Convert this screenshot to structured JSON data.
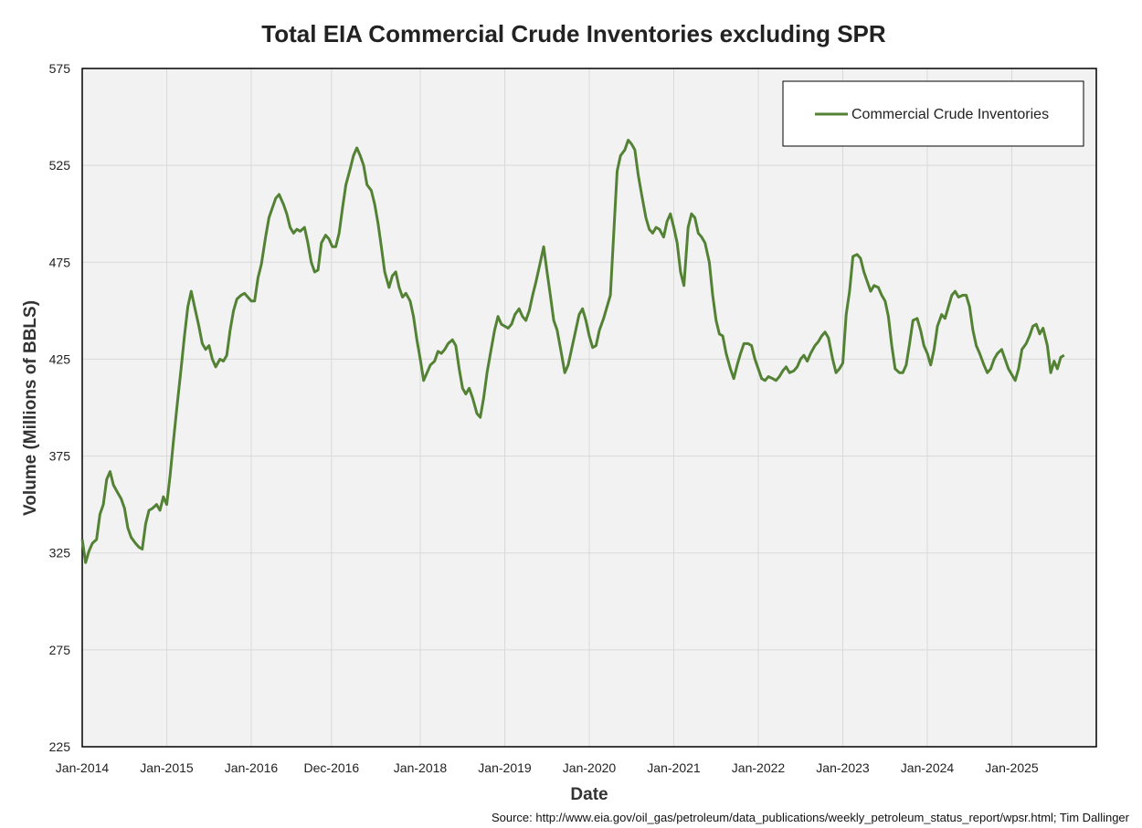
{
  "chart_data": {
    "type": "line",
    "title": "Total EIA Commercial Crude Inventories excluding SPR",
    "xlabel": "Date",
    "ylabel": "Volume (Millions of BBLS)",
    "ylim": [
      225,
      575
    ],
    "yticks": [
      225,
      275,
      325,
      375,
      425,
      475,
      525,
      575
    ],
    "xlim": [
      2014.0,
      2026.0
    ],
    "xticks": [
      {
        "label": "Jan-2014",
        "t": 2014.0
      },
      {
        "label": "Jan-2015",
        "t": 2015.0
      },
      {
        "label": "Jan-2016",
        "t": 2016.0
      },
      {
        "label": "Dec-2016",
        "t": 2016.95
      },
      {
        "label": "Jan-2018",
        "t": 2018.0
      },
      {
        "label": "Jan-2019",
        "t": 2019.0
      },
      {
        "label": "Jan-2020",
        "t": 2020.0
      },
      {
        "label": "Jan-2021",
        "t": 2021.0
      },
      {
        "label": "Jan-2022",
        "t": 2022.0
      },
      {
        "label": "Jan-2023",
        "t": 2023.0
      },
      {
        "label": "Jan-2024",
        "t": 2024.0
      },
      {
        "label": "Jan-2025",
        "t": 2025.0
      }
    ],
    "grid": true,
    "legend_position": "top-right",
    "series": [
      {
        "name": "Commercial Crude Inventories",
        "color": "#548235",
        "points": [
          [
            2014.0,
            332
          ],
          [
            2014.04,
            320
          ],
          [
            2014.08,
            326
          ],
          [
            2014.12,
            330
          ],
          [
            2014.17,
            332
          ],
          [
            2014.21,
            345
          ],
          [
            2014.25,
            350
          ],
          [
            2014.29,
            363
          ],
          [
            2014.33,
            367
          ],
          [
            2014.37,
            360
          ],
          [
            2014.42,
            356
          ],
          [
            2014.46,
            353
          ],
          [
            2014.5,
            348
          ],
          [
            2014.54,
            338
          ],
          [
            2014.58,
            333
          ],
          [
            2014.63,
            330
          ],
          [
            2014.67,
            328
          ],
          [
            2014.71,
            327
          ],
          [
            2014.75,
            340
          ],
          [
            2014.79,
            347
          ],
          [
            2014.83,
            348
          ],
          [
            2014.88,
            350
          ],
          [
            2014.92,
            347
          ],
          [
            2014.96,
            354
          ],
          [
            2015.0,
            350
          ],
          [
            2015.04,
            365
          ],
          [
            2015.08,
            383
          ],
          [
            2015.12,
            400
          ],
          [
            2015.17,
            420
          ],
          [
            2015.21,
            437
          ],
          [
            2015.25,
            452
          ],
          [
            2015.29,
            460
          ],
          [
            2015.33,
            452
          ],
          [
            2015.38,
            442
          ],
          [
            2015.42,
            433
          ],
          [
            2015.46,
            430
          ],
          [
            2015.5,
            432
          ],
          [
            2015.54,
            425
          ],
          [
            2015.58,
            421
          ],
          [
            2015.63,
            425
          ],
          [
            2015.67,
            424
          ],
          [
            2015.71,
            427
          ],
          [
            2015.75,
            440
          ],
          [
            2015.79,
            450
          ],
          [
            2015.83,
            456
          ],
          [
            2015.88,
            458
          ],
          [
            2015.92,
            459
          ],
          [
            2015.96,
            457
          ],
          [
            2016.0,
            455
          ],
          [
            2016.04,
            455
          ],
          [
            2016.08,
            467
          ],
          [
            2016.12,
            474
          ],
          [
            2016.17,
            488
          ],
          [
            2016.21,
            498
          ],
          [
            2016.25,
            503
          ],
          [
            2016.29,
            508
          ],
          [
            2016.33,
            510
          ],
          [
            2016.38,
            505
          ],
          [
            2016.42,
            500
          ],
          [
            2016.46,
            493
          ],
          [
            2016.5,
            490
          ],
          [
            2016.54,
            492
          ],
          [
            2016.58,
            491
          ],
          [
            2016.63,
            493
          ],
          [
            2016.67,
            485
          ],
          [
            2016.71,
            475
          ],
          [
            2016.75,
            470
          ],
          [
            2016.79,
            471
          ],
          [
            2016.83,
            485
          ],
          [
            2016.88,
            489
          ],
          [
            2016.92,
            487
          ],
          [
            2016.96,
            483
          ],
          [
            2017.0,
            483
          ],
          [
            2017.04,
            490
          ],
          [
            2017.08,
            503
          ],
          [
            2017.12,
            515
          ],
          [
            2017.17,
            523
          ],
          [
            2017.21,
            530
          ],
          [
            2017.25,
            534
          ],
          [
            2017.29,
            530
          ],
          [
            2017.33,
            525
          ],
          [
            2017.37,
            515
          ],
          [
            2017.42,
            512
          ],
          [
            2017.46,
            505
          ],
          [
            2017.5,
            495
          ],
          [
            2017.54,
            483
          ],
          [
            2017.58,
            470
          ],
          [
            2017.63,
            462
          ],
          [
            2017.67,
            468
          ],
          [
            2017.71,
            470
          ],
          [
            2017.75,
            462
          ],
          [
            2017.79,
            457
          ],
          [
            2017.83,
            459
          ],
          [
            2017.88,
            455
          ],
          [
            2017.92,
            447
          ],
          [
            2017.96,
            435
          ],
          [
            2018.0,
            425
          ],
          [
            2018.04,
            414
          ],
          [
            2018.08,
            418
          ],
          [
            2018.12,
            422
          ],
          [
            2018.17,
            424
          ],
          [
            2018.21,
            429
          ],
          [
            2018.25,
            428
          ],
          [
            2018.29,
            430
          ],
          [
            2018.33,
            433
          ],
          [
            2018.38,
            435
          ],
          [
            2018.42,
            432
          ],
          [
            2018.46,
            420
          ],
          [
            2018.5,
            410
          ],
          [
            2018.54,
            407
          ],
          [
            2018.58,
            410
          ],
          [
            2018.62,
            405
          ],
          [
            2018.67,
            397
          ],
          [
            2018.71,
            395
          ],
          [
            2018.75,
            405
          ],
          [
            2018.79,
            418
          ],
          [
            2018.83,
            428
          ],
          [
            2018.88,
            440
          ],
          [
            2018.92,
            447
          ],
          [
            2018.96,
            443
          ],
          [
            2019.0,
            442
          ],
          [
            2019.04,
            441
          ],
          [
            2019.08,
            443
          ],
          [
            2019.12,
            448
          ],
          [
            2019.17,
            451
          ],
          [
            2019.21,
            447
          ],
          [
            2019.25,
            445
          ],
          [
            2019.29,
            450
          ],
          [
            2019.33,
            458
          ],
          [
            2019.37,
            465
          ],
          [
            2019.42,
            475
          ],
          [
            2019.46,
            483
          ],
          [
            2019.5,
            470
          ],
          [
            2019.54,
            458
          ],
          [
            2019.58,
            445
          ],
          [
            2019.62,
            440
          ],
          [
            2019.67,
            428
          ],
          [
            2019.71,
            418
          ],
          [
            2019.75,
            422
          ],
          [
            2019.79,
            430
          ],
          [
            2019.83,
            438
          ],
          [
            2019.88,
            448
          ],
          [
            2019.92,
            451
          ],
          [
            2019.96,
            445
          ],
          [
            2020.0,
            437
          ],
          [
            2020.04,
            431
          ],
          [
            2020.08,
            432
          ],
          [
            2020.12,
            440
          ],
          [
            2020.17,
            446
          ],
          [
            2020.21,
            452
          ],
          [
            2020.25,
            458
          ],
          [
            2020.29,
            490
          ],
          [
            2020.33,
            522
          ],
          [
            2020.37,
            530
          ],
          [
            2020.42,
            533
          ],
          [
            2020.46,
            538
          ],
          [
            2020.5,
            536
          ],
          [
            2020.54,
            533
          ],
          [
            2020.58,
            520
          ],
          [
            2020.62,
            510
          ],
          [
            2020.67,
            498
          ],
          [
            2020.71,
            492
          ],
          [
            2020.75,
            490
          ],
          [
            2020.79,
            493
          ],
          [
            2020.83,
            492
          ],
          [
            2020.88,
            488
          ],
          [
            2020.92,
            496
          ],
          [
            2020.96,
            500
          ],
          [
            2021.0,
            493
          ],
          [
            2021.04,
            485
          ],
          [
            2021.08,
            470
          ],
          [
            2021.12,
            463
          ],
          [
            2021.17,
            493
          ],
          [
            2021.21,
            500
          ],
          [
            2021.25,
            498
          ],
          [
            2021.29,
            490
          ],
          [
            2021.33,
            488
          ],
          [
            2021.37,
            485
          ],
          [
            2021.42,
            475
          ],
          [
            2021.46,
            458
          ],
          [
            2021.5,
            445
          ],
          [
            2021.54,
            438
          ],
          [
            2021.58,
            437
          ],
          [
            2021.62,
            428
          ],
          [
            2021.67,
            420
          ],
          [
            2021.71,
            415
          ],
          [
            2021.75,
            422
          ],
          [
            2021.79,
            428
          ],
          [
            2021.83,
            433
          ],
          [
            2021.88,
            433
          ],
          [
            2021.92,
            432
          ],
          [
            2021.96,
            425
          ],
          [
            2022.0,
            420
          ],
          [
            2022.04,
            415
          ],
          [
            2022.08,
            414
          ],
          [
            2022.12,
            416
          ],
          [
            2022.17,
            415
          ],
          [
            2022.21,
            414
          ],
          [
            2022.25,
            416
          ],
          [
            2022.29,
            419
          ],
          [
            2022.33,
            421
          ],
          [
            2022.37,
            418
          ],
          [
            2022.42,
            419
          ],
          [
            2022.46,
            421
          ],
          [
            2022.5,
            425
          ],
          [
            2022.54,
            427
          ],
          [
            2022.58,
            424
          ],
          [
            2022.62,
            428
          ],
          [
            2022.67,
            432
          ],
          [
            2022.71,
            434
          ],
          [
            2022.75,
            437
          ],
          [
            2022.79,
            439
          ],
          [
            2022.83,
            436
          ],
          [
            2022.88,
            425
          ],
          [
            2022.92,
            418
          ],
          [
            2022.96,
            420
          ],
          [
            2023.0,
            423
          ],
          [
            2023.04,
            448
          ],
          [
            2023.08,
            460
          ],
          [
            2023.12,
            478
          ],
          [
            2023.17,
            479
          ],
          [
            2023.21,
            477
          ],
          [
            2023.25,
            470
          ],
          [
            2023.29,
            465
          ],
          [
            2023.33,
            460
          ],
          [
            2023.37,
            463
          ],
          [
            2023.42,
            462
          ],
          [
            2023.46,
            458
          ],
          [
            2023.5,
            455
          ],
          [
            2023.54,
            447
          ],
          [
            2023.58,
            432
          ],
          [
            2023.62,
            420
          ],
          [
            2023.67,
            418
          ],
          [
            2023.71,
            418
          ],
          [
            2023.75,
            422
          ],
          [
            2023.79,
            433
          ],
          [
            2023.83,
            445
          ],
          [
            2023.88,
            446
          ],
          [
            2023.92,
            440
          ],
          [
            2023.96,
            432
          ],
          [
            2024.0,
            428
          ],
          [
            2024.04,
            422
          ],
          [
            2024.08,
            430
          ],
          [
            2024.12,
            442
          ],
          [
            2024.17,
            448
          ],
          [
            2024.21,
            446
          ],
          [
            2024.25,
            452
          ],
          [
            2024.29,
            458
          ],
          [
            2024.33,
            460
          ],
          [
            2024.37,
            457
          ],
          [
            2024.42,
            458
          ],
          [
            2024.46,
            458
          ],
          [
            2024.5,
            452
          ],
          [
            2024.54,
            440
          ],
          [
            2024.58,
            432
          ],
          [
            2024.62,
            428
          ],
          [
            2024.67,
            422
          ],
          [
            2024.71,
            418
          ],
          [
            2024.75,
            420
          ],
          [
            2024.79,
            425
          ],
          [
            2024.83,
            428
          ],
          [
            2024.88,
            430
          ],
          [
            2024.92,
            425
          ],
          [
            2024.96,
            420
          ],
          [
            2025.0,
            417
          ],
          [
            2025.04,
            414
          ],
          [
            2025.08,
            420
          ],
          [
            2025.12,
            430
          ],
          [
            2025.17,
            433
          ],
          [
            2025.21,
            437
          ],
          [
            2025.25,
            442
          ],
          [
            2025.29,
            443
          ],
          [
            2025.33,
            438
          ],
          [
            2025.37,
            441
          ],
          [
            2025.42,
            432
          ],
          [
            2025.46,
            418
          ],
          [
            2025.5,
            424
          ],
          [
            2025.54,
            420
          ],
          [
            2025.58,
            426
          ],
          [
            2025.62,
            427
          ]
        ]
      }
    ]
  },
  "source": "Source: http://www.eia.gov/oil_gas/petroleum/data_publications/weekly_petroleum_status_report/wpsr.html; Tim Dallinger"
}
